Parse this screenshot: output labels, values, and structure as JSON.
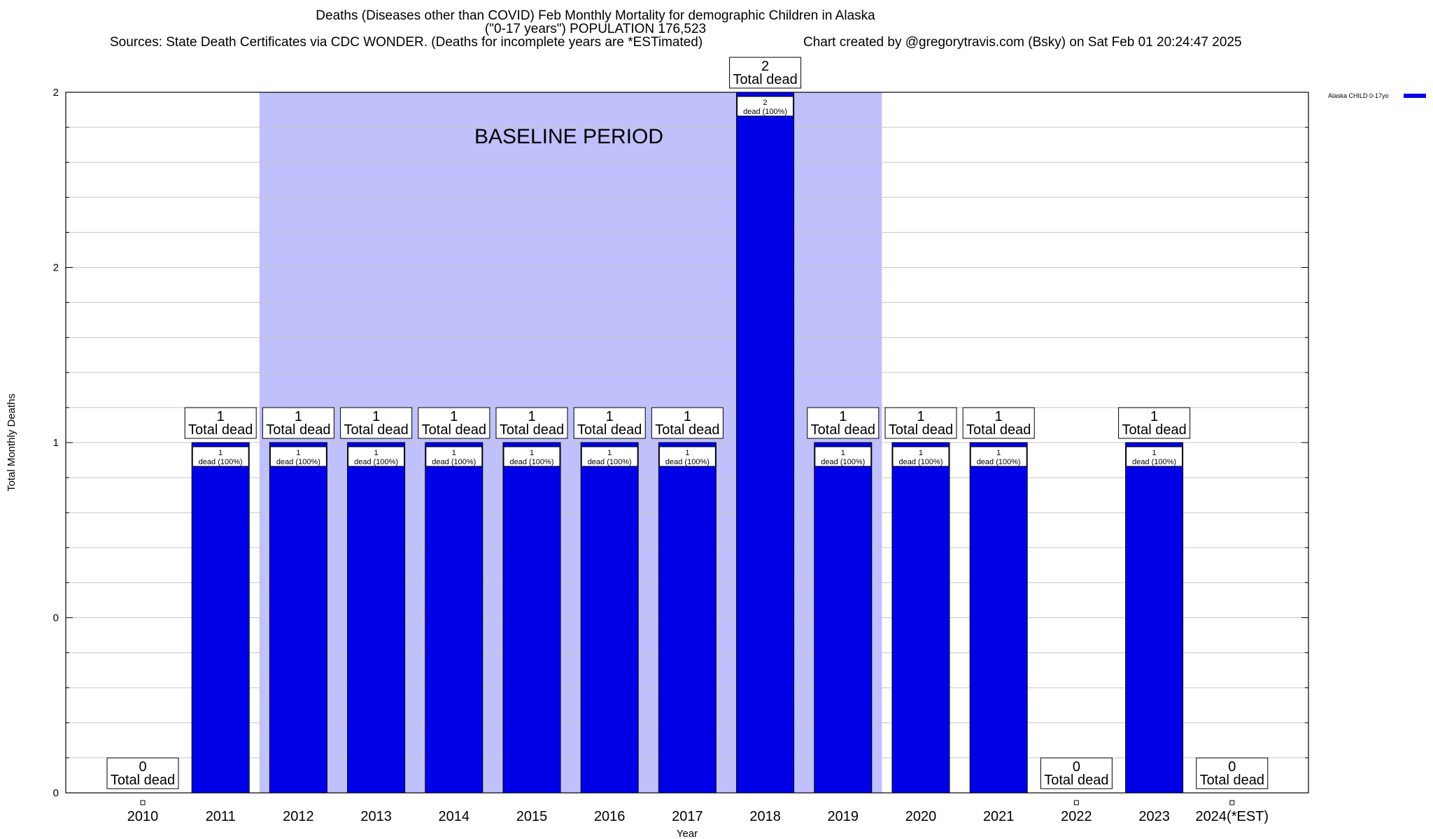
{
  "chart_data": {
    "type": "bar",
    "title": "Deaths (Diseases other than COVID) Feb Monthly Mortality for demographic Children in Alaska",
    "subtitle": "(\"0-17 years\") POPULATION 176,523",
    "sources": "Sources: State Death Certificates via CDC WONDER. (Deaths for incomplete years are *ESTimated)",
    "credit": "Chart created by @gregorytravis.com (Bsky) on Sat Feb 01 20:24:47 2025",
    "xlabel": "Year",
    "ylabel": "Total Monthly Deaths",
    "categories": [
      "2010",
      "2011",
      "2012",
      "2013",
      "2014",
      "2015",
      "2016",
      "2017",
      "2018",
      "2019",
      "2020",
      "2021",
      "2022",
      "2023",
      "2024(*EST)"
    ],
    "series": [
      {
        "name": "Alaska CHILD 0-17yo",
        "color": "#0000e6",
        "values": [
          0,
          1,
          1,
          1,
          1,
          1,
          1,
          1,
          2,
          1,
          1,
          1,
          0,
          1,
          0
        ]
      }
    ],
    "ylim": [
      0,
      2
    ],
    "y_ticks": [
      {
        "value": 0,
        "label": "0"
      },
      {
        "value": 0.5,
        "label": "0"
      },
      {
        "value": 1,
        "label": "1"
      },
      {
        "value": 1.5,
        "label": "2"
      },
      {
        "value": 2,
        "label": "2"
      }
    ],
    "total_label": "Total dead",
    "inner_label": "dead (100%)",
    "baseline": {
      "label": "BASELINE PERIOD",
      "from": "2012",
      "to": "2019",
      "color": "#c0c0fc"
    },
    "grid": true,
    "legend_position": "top-right"
  }
}
